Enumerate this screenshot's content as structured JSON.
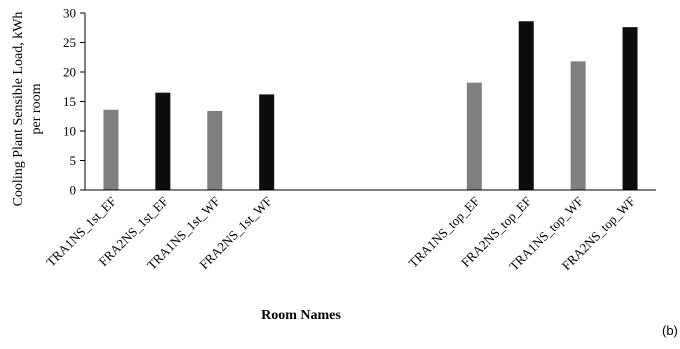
{
  "chart_data": {
    "type": "bar",
    "panel_label": "(b)",
    "ylabel_line1": "Cooling Plant Sensible Load, kWh",
    "ylabel_line2": "per room",
    "xlabel": "Room Names",
    "ylim": [
      0,
      30
    ],
    "yticks": [
      "0",
      "5",
      "10",
      "15",
      "20",
      "25",
      "30"
    ],
    "grid": false,
    "colors": {
      "gray": "#7f7f7f",
      "black": "#0d0d0d"
    },
    "categories": [
      "TRA1NS_1st_EF",
      "FRA2NS_1st_EF",
      "TRA1NS_1st_WF",
      "FRA2NS_1st_WF",
      "",
      "",
      "",
      "TRA1NS_top_EF",
      "FRA2NS_top_EF",
      "TRA1NS_top_WF",
      "FRA2NS_top_WF"
    ],
    "values": [
      13.6,
      16.5,
      13.4,
      16.2,
      null,
      null,
      null,
      18.2,
      28.6,
      21.8,
      27.6
    ],
    "bar_colors": [
      "gray",
      "black",
      "gray",
      "black",
      null,
      null,
      null,
      "gray",
      "black",
      "gray",
      "black"
    ]
  }
}
